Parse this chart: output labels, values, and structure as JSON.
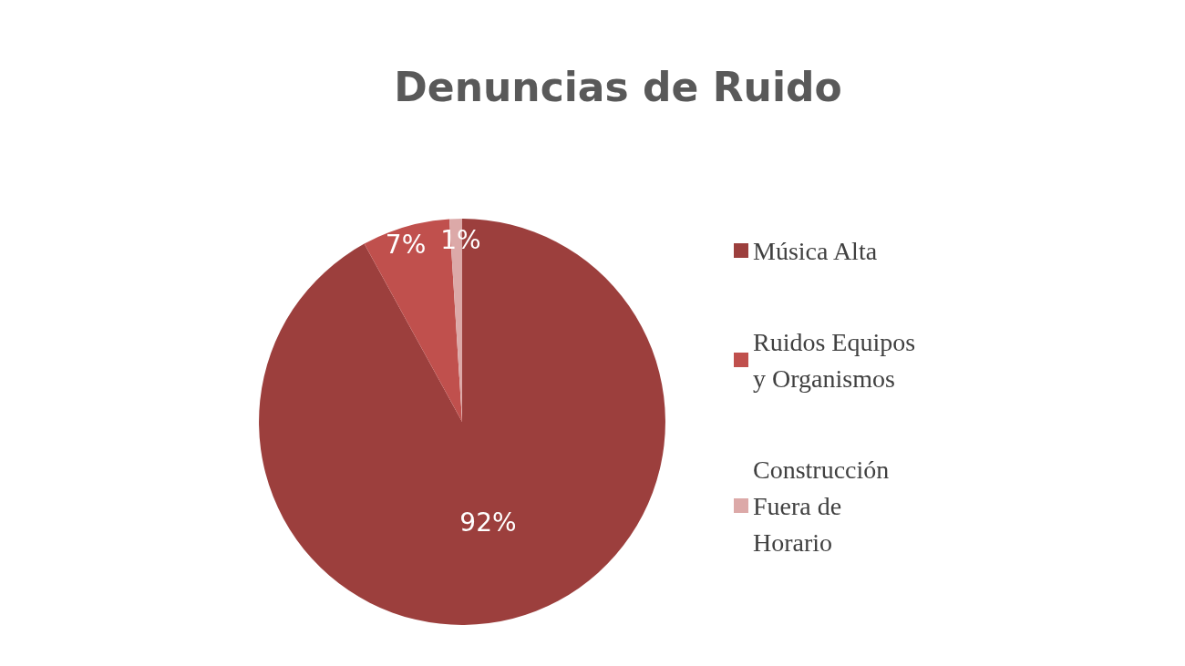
{
  "chart_data": {
    "type": "pie",
    "title": "Denuncias de Ruido",
    "categories": [
      "Música Alta",
      "Ruidos Equipos y Organismos",
      "Construcción Fuera de Horario"
    ],
    "values": [
      92,
      7,
      1
    ],
    "colors": [
      "#9c3f3d",
      "#c0504d",
      "#dca9a8"
    ],
    "value_labels": [
      "92%",
      "7%",
      "1%"
    ],
    "legend": "right"
  }
}
